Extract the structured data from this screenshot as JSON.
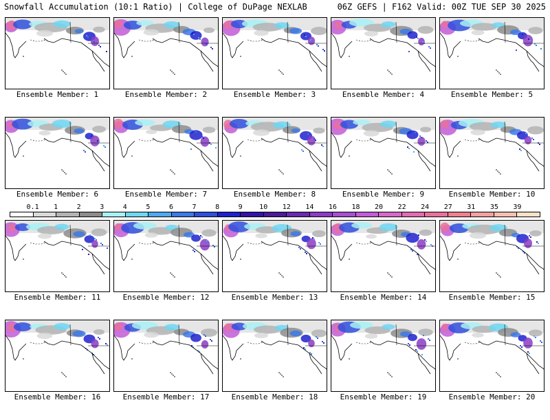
{
  "header": {
    "title_left": "Snowfall Accumulation (10:1 Ratio) | College of DuPage NEXLAB",
    "title_right": "06Z GEFS | F162 Valid: 00Z TUE SEP 30 2025"
  },
  "legend": {
    "labels": [
      "0.1",
      "1",
      "2",
      "3",
      "4",
      "5",
      "6",
      "7",
      "8",
      "9",
      "10",
      "12",
      "14",
      "16",
      "18",
      "20",
      "22",
      "24",
      "27",
      "31",
      "35",
      "39"
    ],
    "colors": [
      "#ffffff",
      "#d9d9d9",
      "#b3b3b3",
      "#8c8c8c",
      "#a8f0f5",
      "#6fd6f2",
      "#4fa8ee",
      "#3d79e6",
      "#2f4fdc",
      "#1e22cc",
      "#3214a8",
      "#4a1c9a",
      "#6a2ab0",
      "#8a3cc4",
      "#a84ed0",
      "#c25cd6",
      "#d868c8",
      "#e26cb0",
      "#e8709c",
      "#ee8090",
      "#f2a0a0",
      "#f6c0b0",
      "#fae0c8"
    ]
  },
  "panels": [
    {
      "label": "Ensemble Member: 1"
    },
    {
      "label": "Ensemble Member: 2"
    },
    {
      "label": "Ensemble Member: 3"
    },
    {
      "label": "Ensemble Member: 4"
    },
    {
      "label": "Ensemble Member: 5"
    },
    {
      "label": "Ensemble Member: 6"
    },
    {
      "label": "Ensemble Member: 7"
    },
    {
      "label": "Ensemble Member: 8"
    },
    {
      "label": "Ensemble Member: 9"
    },
    {
      "label": "Ensemble Member: 10"
    },
    {
      "label": "Ensemble Member: 11"
    },
    {
      "label": "Ensemble Member: 12"
    },
    {
      "label": "Ensemble Member: 13"
    },
    {
      "label": "Ensemble Member: 14"
    },
    {
      "label": "Ensemble Member: 15"
    },
    {
      "label": "Ensemble Member: 16"
    },
    {
      "label": "Ensemble Member: 17"
    },
    {
      "label": "Ensemble Member: 18"
    },
    {
      "label": "Ensemble Member: 19"
    },
    {
      "label": "Ensemble Member: 20"
    }
  ]
}
